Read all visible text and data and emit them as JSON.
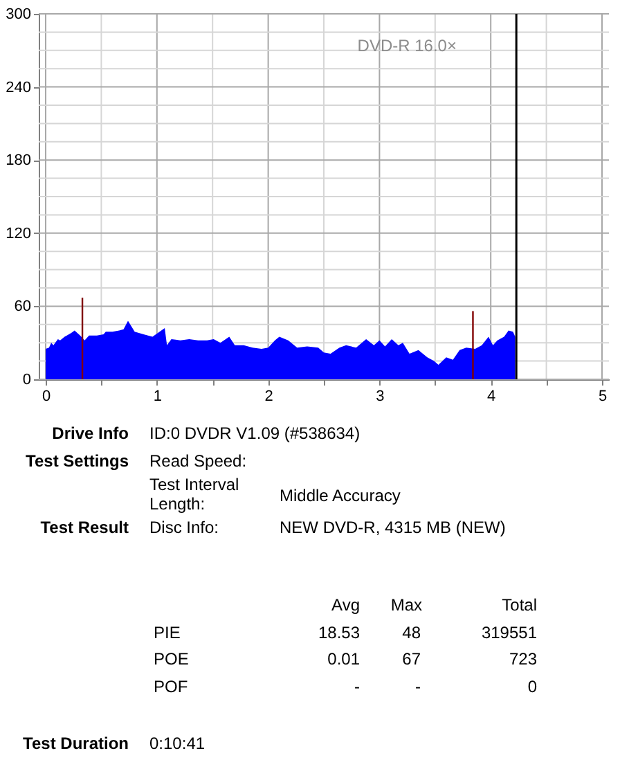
{
  "chart_data": {
    "type": "area",
    "xlim": [
      0,
      5
    ],
    "xticks": [
      0,
      {
        "value": 0.5,
        "label": null
      },
      1,
      {
        "value": 1.5,
        "label": null
      },
      2,
      {
        "value": 2.5,
        "label": null
      },
      3,
      {
        "value": 3.5,
        "label": null
      },
      4,
      {
        "value": 4.5,
        "label": null
      },
      5
    ],
    "ylim": [
      0,
      300
    ],
    "yticks": [
      0,
      {
        "value": 15,
        "label": null
      },
      {
        "value": 30,
        "label": null
      },
      {
        "value": 45,
        "label": null
      },
      60,
      {
        "value": 75,
        "label": null
      },
      {
        "value": 90,
        "label": null
      },
      {
        "value": 105,
        "label": null
      },
      120,
      {
        "value": 135,
        "label": null
      },
      {
        "value": 150,
        "label": null
      },
      {
        "value": 165,
        "label": null
      },
      180,
      {
        "value": 195,
        "label": null
      },
      {
        "value": 210,
        "label": null
      },
      {
        "value": 225,
        "label": null
      },
      240,
      {
        "value": 255,
        "label": null
      },
      {
        "value": 270,
        "label": null
      },
      {
        "value": 285,
        "label": null
      },
      300
    ],
    "grid": true,
    "series": [
      {
        "color": "#0000ff",
        "x": [
          0,
          0.03,
          0.05,
          0.07,
          0.11,
          0.13,
          0.17,
          0.19,
          0.23,
          0.26,
          0.31,
          0.35,
          0.39,
          0.46,
          0.52,
          0.54,
          0.6,
          0.66,
          0.7,
          0.74,
          0.8,
          0.88,
          0.96,
          1.07,
          1.09,
          1.13,
          1.21,
          1.29,
          1.37,
          1.45,
          1.51,
          1.57,
          1.65,
          1.7,
          1.78,
          1.86,
          1.94,
          2.0,
          2.06,
          2.1,
          2.18,
          2.26,
          2.35,
          2.45,
          2.5,
          2.56,
          2.64,
          2.7,
          2.79,
          2.88,
          2.95,
          3.0,
          3.05,
          3.11,
          3.17,
          3.21,
          3.27,
          3.35,
          3.43,
          3.49,
          3.53,
          3.6,
          3.66,
          3.72,
          3.78,
          3.86,
          3.92,
          3.98,
          4.02,
          4.06,
          4.12,
          4.16,
          4.2,
          4.22
        ],
        "values": [
          25,
          26,
          30,
          28,
          33,
          32,
          35,
          36,
          38,
          40,
          36,
          32,
          36,
          36,
          37,
          39,
          39,
          40,
          41,
          48,
          39,
          37,
          35,
          42,
          28,
          33,
          32,
          33,
          32,
          32,
          33,
          30,
          35,
          28,
          28,
          26,
          25,
          26,
          32,
          35,
          32,
          26,
          27,
          26,
          22,
          21,
          26,
          28,
          26,
          33,
          28,
          32,
          27,
          33,
          28,
          30,
          21,
          24,
          18,
          15,
          12,
          18,
          16,
          24,
          26,
          25,
          28,
          35,
          28,
          32,
          35,
          40,
          39,
          35
        ]
      },
      {
        "type": "bar",
        "color": "#800000",
        "x": [
          0.33,
          3.84
        ],
        "values": [
          67,
          56
        ]
      }
    ],
    "ref_lines": [
      {
        "axis": "x",
        "value": 4.23,
        "color": "#000000"
      }
    ],
    "annotations": [
      "DVD-R 16.0×",
      "Drive Info",
      "ID:0 DVDR V1.09 (#538634)",
      "Test Settings",
      "Read Speed:",
      "Test Interval Length:",
      "Middle Accuracy",
      "Test Result",
      "Disc Info:",
      "NEW DVD-R, 4315 MB (NEW)",
      "Avg",
      "Max",
      "Total",
      "PIE",
      "18.53",
      "48",
      "319551",
      "POE",
      "0.01",
      "67",
      "723",
      "POF",
      "-",
      "-",
      "0",
      "Test Duration",
      "0:10:41"
    ]
  }
}
